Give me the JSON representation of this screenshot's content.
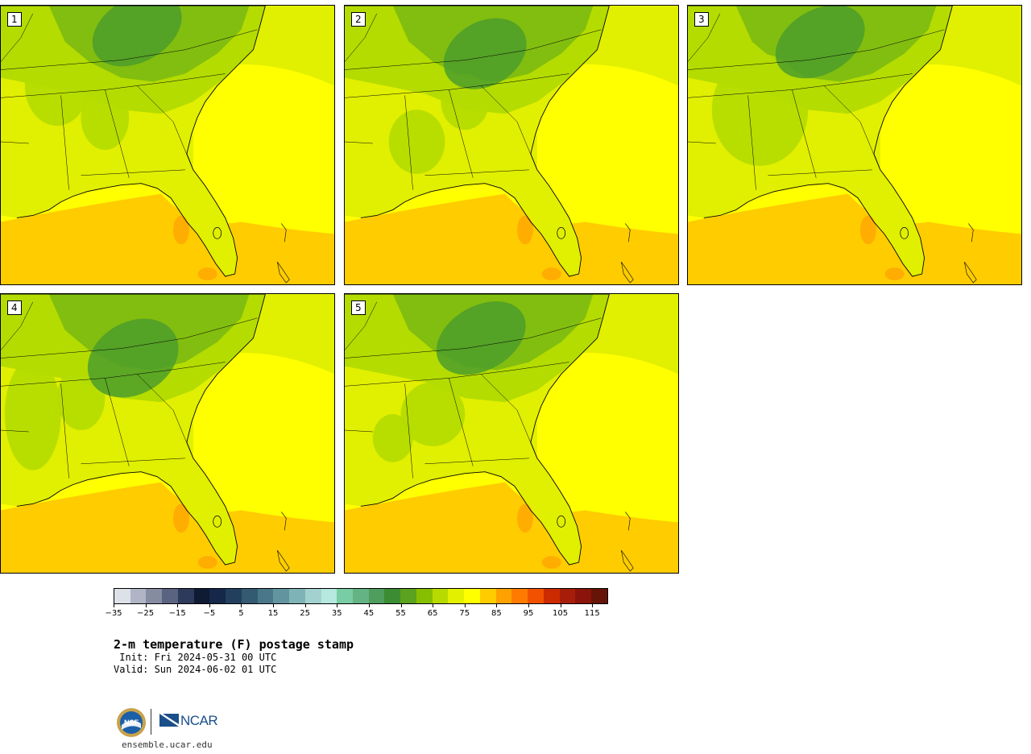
{
  "panels": [
    {
      "label": "1"
    },
    {
      "label": "2"
    },
    {
      "label": "3"
    },
    {
      "label": "4"
    },
    {
      "label": "5"
    }
  ],
  "map": {
    "field": "2-m temperature (F)",
    "region": "southeastern United States",
    "fill_colors": {
      "ocean_warm": "#ffcc00",
      "ocean_mid": "#ffff00",
      "land_base": "#e1ef00",
      "land_cool": "#b4dc00",
      "land_cooler": "#82be0f",
      "mountains": "#4c9e2a",
      "hot_spots": "#ffa500"
    }
  },
  "colorbar": {
    "colors": [
      "#dde1e8",
      "#b0b5c6",
      "#858ca2",
      "#5a6480",
      "#2e3a5c",
      "#0f1a33",
      "#15284a",
      "#22405e",
      "#345a72",
      "#4a7889",
      "#62949f",
      "#7fb4b6",
      "#a3d1cf",
      "#b5e8df",
      "#79cda4",
      "#63b383",
      "#4f9e5e",
      "#3c8c33",
      "#5ba31e",
      "#86bf00",
      "#b7db00",
      "#e3f000",
      "#ffff00",
      "#ffcc00",
      "#ffa100",
      "#ff7b00",
      "#f25200",
      "#cc2a00",
      "#a81d0a",
      "#8a1409",
      "#661407"
    ],
    "tick_values": [
      "-35",
      "-25",
      "-15",
      "-5",
      "5",
      "15",
      "25",
      "35",
      "45",
      "55",
      "65",
      "75",
      "85",
      "95",
      "105",
      "115"
    ]
  },
  "title": "2-m temperature (F) postage stamp",
  "init": " Init: Fri 2024-05-31 00 UTC",
  "valid": "Valid: Sun 2024-06-02 01 UTC",
  "footer": {
    "ncar_label": "NCAR",
    "website": "ensemble.ucar.edu"
  }
}
